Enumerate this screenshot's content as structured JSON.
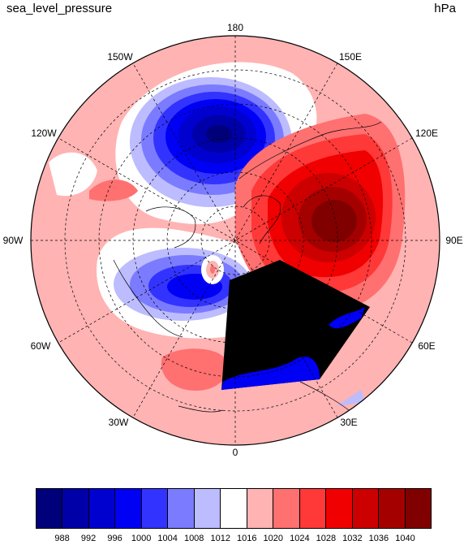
{
  "header": {
    "title": "sea_level_pressure",
    "units": "hPa"
  },
  "map": {
    "projection": "north-polar-stereographic",
    "longitude_labels": [
      "180",
      "150E",
      "120E",
      "90E",
      "60E",
      "30E",
      "0",
      "30W",
      "60W",
      "90W",
      "120W",
      "150W"
    ],
    "graticule": "dashed"
  },
  "colorbar": {
    "colors": [
      "#00007a",
      "#0000a8",
      "#0000cf",
      "#0000f5",
      "#3333ff",
      "#7b7bff",
      "#bcbcff",
      "#ffffff",
      "#ffb3b3",
      "#ff7070",
      "#ff3838",
      "#f00000",
      "#cc0000",
      "#a50000",
      "#800000"
    ],
    "labels": [
      "988",
      "992",
      "996",
      "1000",
      "1004",
      "1008",
      "1012",
      "1016",
      "1020",
      "1024",
      "1028",
      "1032",
      "1036",
      "1040"
    ]
  }
}
